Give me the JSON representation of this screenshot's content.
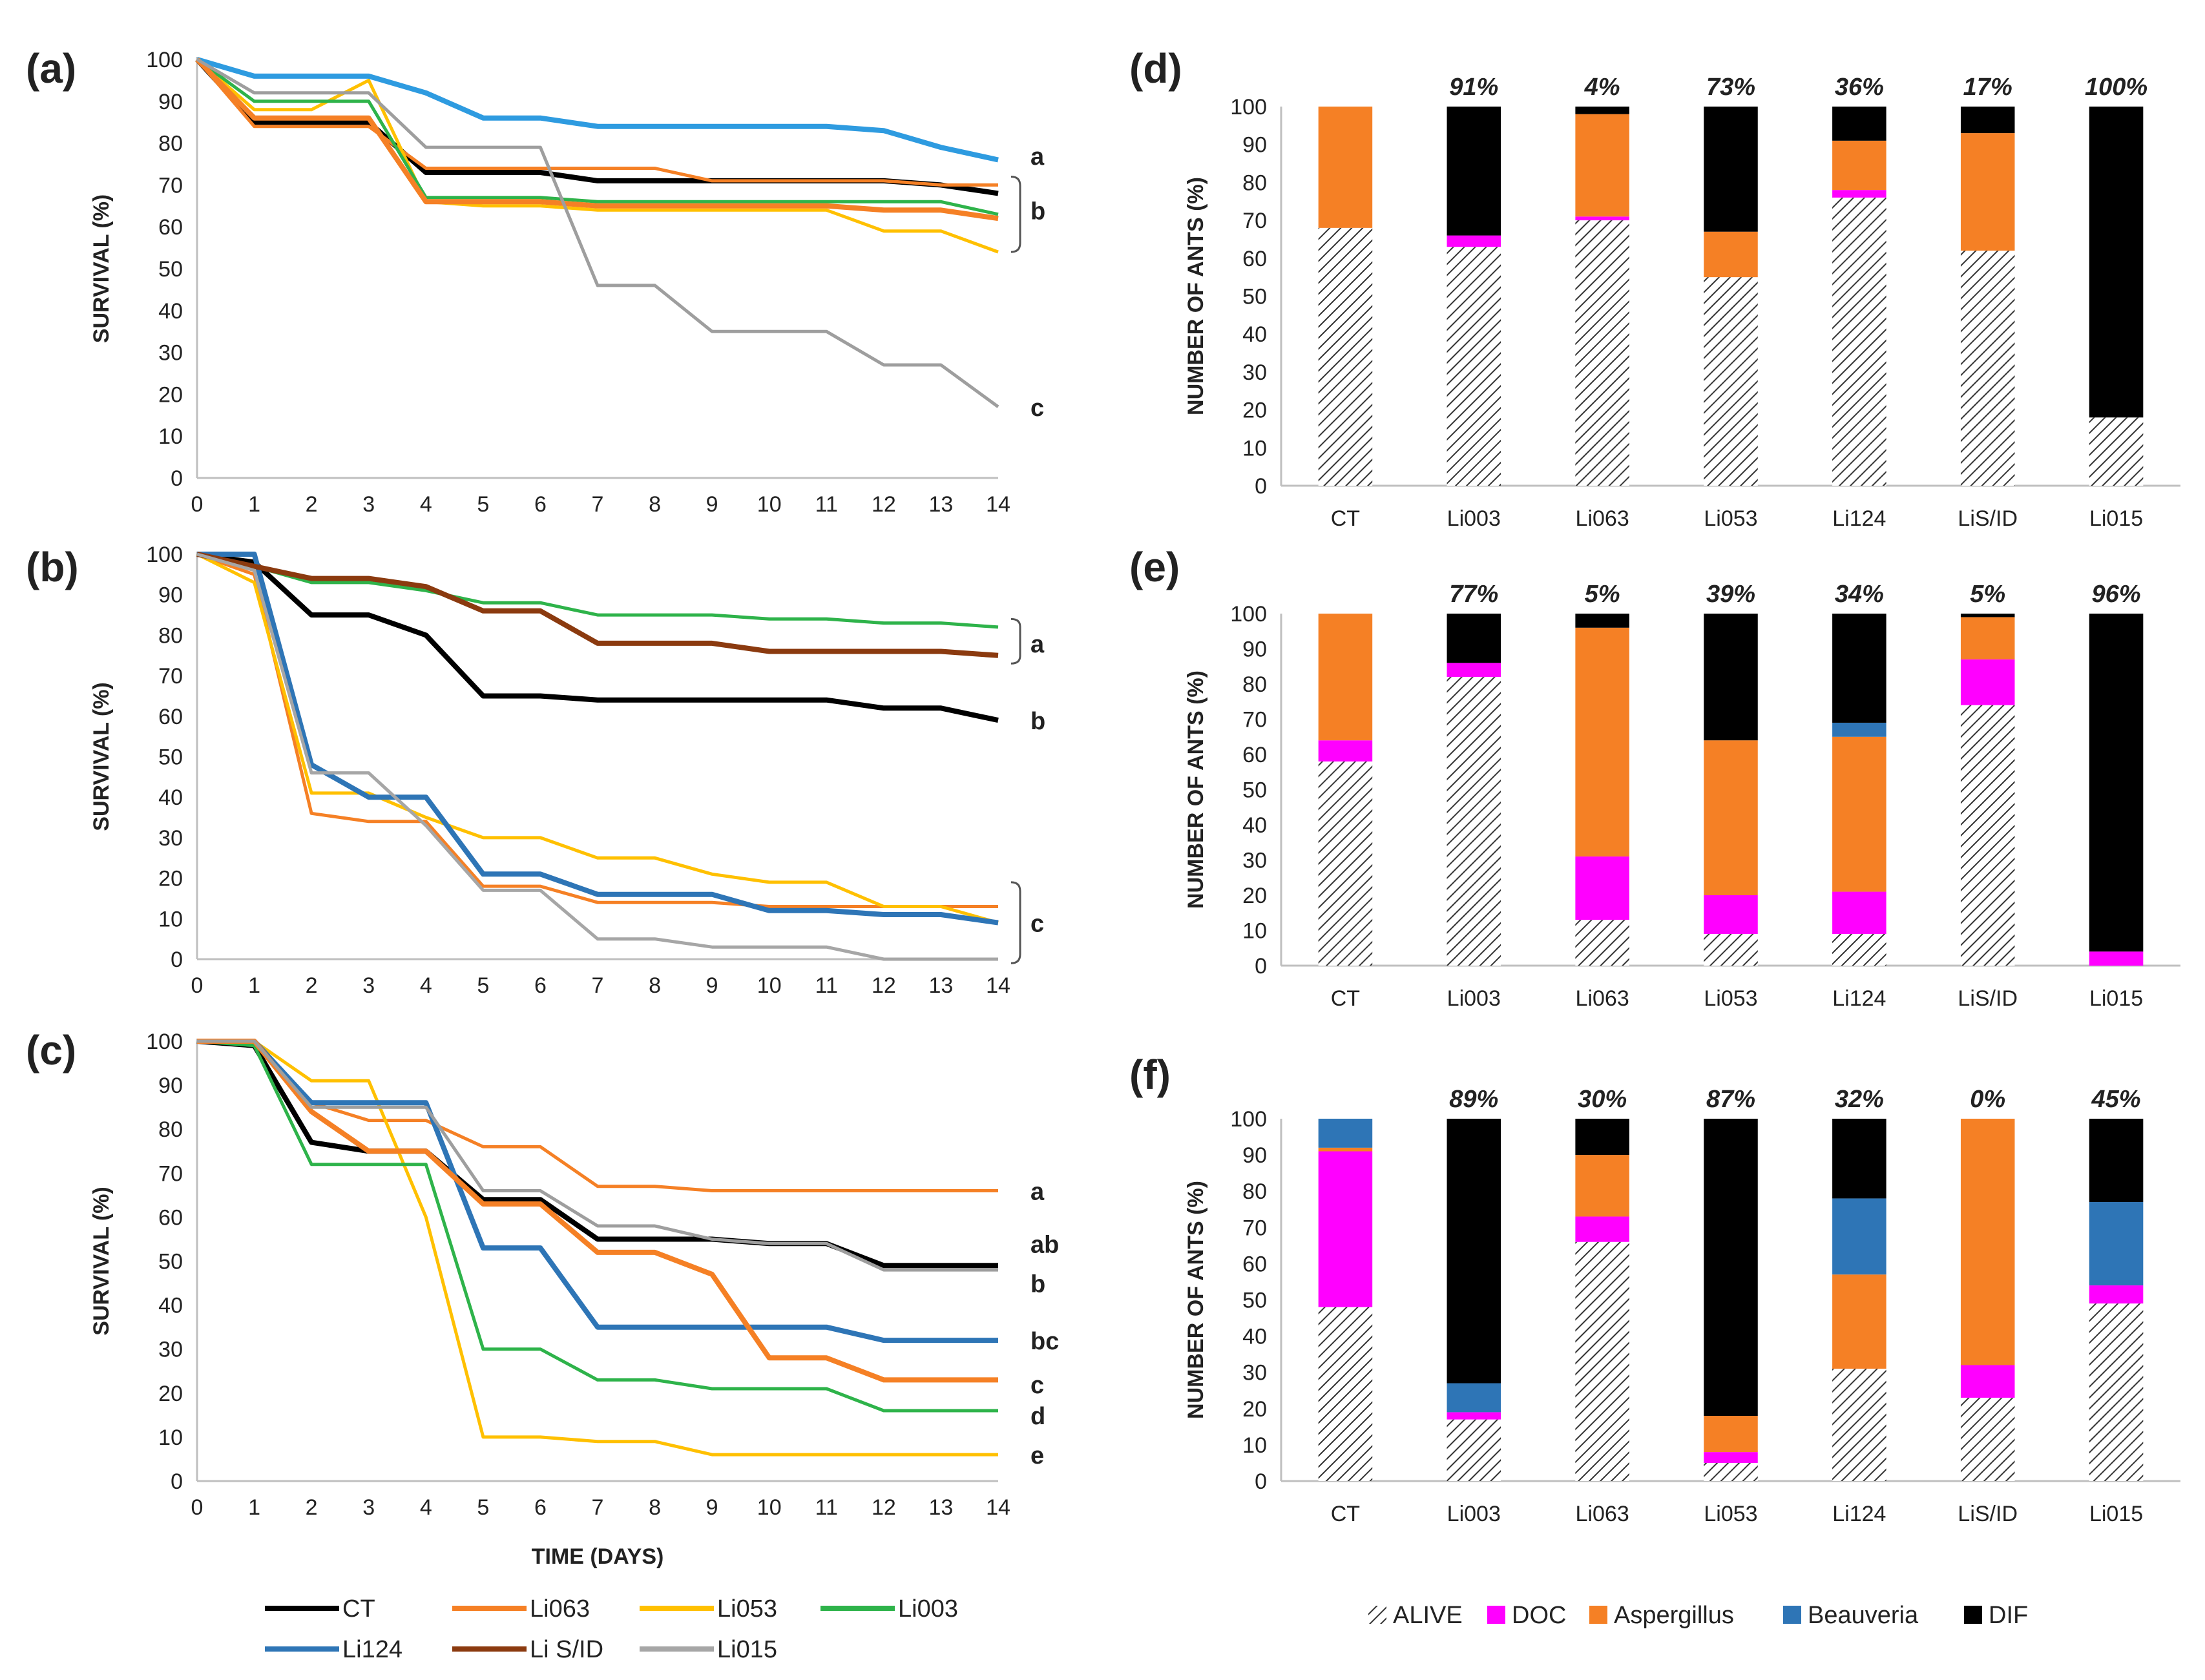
{
  "chart_data": [
    {
      "type": "line",
      "panel": "(a)",
      "ylabel": "SURVIVAL (%)",
      "xlabel": "",
      "x": [
        0,
        1,
        2,
        3,
        4,
        5,
        6,
        7,
        8,
        9,
        10,
        11,
        12,
        13,
        14
      ],
      "ylim": [
        0,
        100
      ],
      "series": [
        {
          "name": "CT",
          "color": "#000000",
          "values": [
            100,
            85,
            85,
            85,
            73,
            73,
            73,
            71,
            71,
            71,
            71,
            71,
            71,
            70,
            68
          ]
        },
        {
          "name": "Li063",
          "color": "#F58025",
          "values": [
            100,
            84,
            84,
            84,
            74,
            74,
            74,
            74,
            74,
            71,
            71,
            71,
            71,
            70,
            70
          ]
        },
        {
          "name": "Li053",
          "color": "#FFC000",
          "values": [
            100,
            88,
            88,
            95,
            66,
            65,
            65,
            64,
            64,
            64,
            64,
            64,
            59,
            59,
            54
          ]
        },
        {
          "name": "Li003",
          "color": "#2EB34A",
          "values": [
            100,
            90,
            90,
            90,
            67,
            67,
            67,
            66,
            66,
            66,
            66,
            66,
            66,
            66,
            63
          ]
        },
        {
          "name": "Li124",
          "color": "#2E9BE0",
          "values": [
            100,
            96,
            96,
            96,
            92,
            86,
            86,
            84,
            84,
            84,
            84,
            84,
            83,
            79,
            76
          ]
        },
        {
          "name": "Li S/ID",
          "color": "#F58025",
          "values": [
            100,
            86,
            86,
            86,
            66,
            66,
            66,
            65,
            65,
            65,
            65,
            65,
            64,
            64,
            62
          ]
        },
        {
          "name": "Li015",
          "color": "#9E9E9E",
          "values": [
            100,
            92,
            92,
            92,
            79,
            79,
            79,
            46,
            46,
            35,
            35,
            35,
            27,
            27,
            17
          ]
        }
      ],
      "annotations": [
        {
          "text": "a",
          "y": 77
        },
        {
          "text": "b",
          "y": 64
        },
        {
          "text": "c",
          "y": 17
        }
      ]
    },
    {
      "type": "line",
      "panel": "(b)",
      "ylabel": "SURVIVAL (%)",
      "xlabel": "",
      "x": [
        0,
        1,
        2,
        3,
        4,
        5,
        6,
        7,
        8,
        9,
        10,
        11,
        12,
        13,
        14
      ],
      "ylim": [
        0,
        100
      ],
      "series": [
        {
          "name": "CT",
          "color": "#000000",
          "values": [
            100,
            98,
            85,
            85,
            80,
            65,
            65,
            64,
            64,
            64,
            64,
            64,
            62,
            62,
            59
          ]
        },
        {
          "name": "Li063",
          "color": "#F58025",
          "values": [
            100,
            95,
            36,
            34,
            34,
            18,
            18,
            14,
            14,
            14,
            13,
            13,
            13,
            13,
            13
          ]
        },
        {
          "name": "Li053",
          "color": "#FFC000",
          "values": [
            100,
            93,
            41,
            41,
            35,
            30,
            30,
            25,
            25,
            21,
            19,
            19,
            13,
            13,
            9
          ]
        },
        {
          "name": "Li003",
          "color": "#2EB34A",
          "values": [
            100,
            97,
            93,
            93,
            91,
            88,
            88,
            85,
            85,
            85,
            84,
            84,
            83,
            83,
            82
          ]
        },
        {
          "name": "Li124",
          "color": "#2E75B6",
          "values": [
            100,
            100,
            48,
            40,
            40,
            21,
            21,
            16,
            16,
            16,
            12,
            12,
            11,
            11,
            9
          ]
        },
        {
          "name": "Li S/ID",
          "color": "#8B3A0F",
          "values": [
            100,
            97,
            94,
            94,
            92,
            86,
            86,
            78,
            78,
            78,
            76,
            76,
            76,
            76,
            75
          ]
        },
        {
          "name": "Li015",
          "color": "#A6A6A6",
          "values": [
            100,
            96,
            46,
            46,
            33,
            17,
            17,
            5,
            5,
            3,
            3,
            3,
            0,
            0,
            0
          ]
        }
      ],
      "annotations": [
        {
          "text": "a",
          "y": 78
        },
        {
          "text": "b",
          "y": 59
        },
        {
          "text": "c",
          "y": 9
        }
      ]
    },
    {
      "type": "line",
      "panel": "(c)",
      "ylabel": "SURVIVAL (%)",
      "xlabel": "TIME (DAYS)",
      "x": [
        0,
        1,
        2,
        3,
        4,
        5,
        6,
        7,
        8,
        9,
        10,
        11,
        12,
        13,
        14
      ],
      "ylim": [
        0,
        100
      ],
      "series": [
        {
          "name": "CT",
          "color": "#000000",
          "values": [
            100,
            99,
            77,
            75,
            75,
            64,
            64,
            55,
            55,
            55,
            54,
            54,
            49,
            49,
            49
          ]
        },
        {
          "name": "Li063",
          "color": "#F58025",
          "values": [
            100,
            100,
            86,
            82,
            82,
            76,
            76,
            67,
            67,
            66,
            66,
            66,
            66,
            66,
            66
          ]
        },
        {
          "name": "Li053",
          "color": "#FFC000",
          "values": [
            100,
            100,
            91,
            91,
            60,
            10,
            10,
            9,
            9,
            6,
            6,
            6,
            6,
            6,
            6
          ]
        },
        {
          "name": "Li003",
          "color": "#2EB34A",
          "values": [
            100,
            99,
            72,
            72,
            72,
            30,
            30,
            23,
            23,
            21,
            21,
            21,
            16,
            16,
            16
          ]
        },
        {
          "name": "Li124",
          "color": "#2E75B6",
          "values": [
            100,
            100,
            86,
            86,
            86,
            53,
            53,
            35,
            35,
            35,
            35,
            35,
            32,
            32,
            32
          ]
        },
        {
          "name": "Li S/ID",
          "color": "#F58025",
          "values": [
            100,
            100,
            84,
            75,
            75,
            63,
            63,
            52,
            52,
            47,
            28,
            28,
            23,
            23,
            23
          ]
        },
        {
          "name": "Li015",
          "color": "#9E9E9E",
          "values": [
            100,
            100,
            85,
            85,
            85,
            66,
            66,
            58,
            58,
            55,
            54,
            54,
            48,
            48,
            48
          ]
        }
      ],
      "annotations": [
        {
          "text": "a",
          "y": 66
        },
        {
          "text": "ab",
          "y": 54
        },
        {
          "text": "b",
          "y": 45
        },
        {
          "text": "bc",
          "y": 32
        },
        {
          "text": "c",
          "y": 22
        },
        {
          "text": "d",
          "y": 15
        },
        {
          "text": "e",
          "y": 6
        }
      ]
    },
    {
      "type": "bar",
      "stacked": true,
      "panel": "(d)",
      "ylabel": "NUMBER OF ANTS (%)",
      "categories": [
        "CT",
        "Li003",
        "Li063",
        "Li053",
        "Li124",
        "LiS/ID",
        "Li015"
      ],
      "ylim": [
        0,
        100
      ],
      "percent_labels": [
        "",
        "91%",
        "4%",
        "73%",
        "36%",
        "17%",
        "100%"
      ],
      "series": [
        {
          "name": "ALIVE",
          "color": "hatch",
          "values": [
            68,
            63,
            70,
            55,
            76,
            62,
            18
          ]
        },
        {
          "name": "DOC",
          "color": "#FF00FF",
          "values": [
            0,
            3,
            1,
            0,
            2,
            0,
            0
          ]
        },
        {
          "name": "Aspergillus",
          "color": "#F58025",
          "values": [
            32,
            0,
            27,
            12,
            13,
            31,
            0
          ]
        },
        {
          "name": "Beauveria",
          "color": "#2E75B6",
          "values": [
            0,
            0,
            0,
            0,
            0,
            0,
            0
          ]
        },
        {
          "name": "DIF",
          "color": "#000000",
          "values": [
            0,
            34,
            2,
            33,
            9,
            7,
            82
          ]
        }
      ]
    },
    {
      "type": "bar",
      "stacked": true,
      "panel": "(e)",
      "ylabel": "NUMBER OF ANTS (%)",
      "categories": [
        "CT",
        "Li003",
        "Li063",
        "Li053",
        "Li124",
        "LiS/ID",
        "Li015"
      ],
      "ylim": [
        0,
        100
      ],
      "percent_labels": [
        "",
        "77%",
        "5%",
        "39%",
        "34%",
        "5%",
        "96%"
      ],
      "series": [
        {
          "name": "ALIVE",
          "color": "hatch",
          "values": [
            58,
            82,
            13,
            9,
            9,
            74,
            0
          ]
        },
        {
          "name": "DOC",
          "color": "#FF00FF",
          "values": [
            6,
            4,
            18,
            11,
            12,
            13,
            4
          ]
        },
        {
          "name": "Aspergillus",
          "color": "#F58025",
          "values": [
            36,
            0,
            65,
            44,
            44,
            12,
            0
          ]
        },
        {
          "name": "Beauveria",
          "color": "#2E75B6",
          "values": [
            0,
            0,
            0,
            0,
            4,
            0,
            0
          ]
        },
        {
          "name": "DIF",
          "color": "#000000",
          "values": [
            0,
            14,
            4,
            36,
            31,
            1,
            96
          ]
        }
      ]
    },
    {
      "type": "bar",
      "stacked": true,
      "panel": "(f)",
      "ylabel": "NUMBER OF ANTS (%)",
      "categories": [
        "CT",
        "Li003",
        "Li063",
        "Li053",
        "Li124",
        "LiS/ID",
        "Li015"
      ],
      "ylim": [
        0,
        100
      ],
      "percent_labels": [
        "",
        "89%",
        "30%",
        "87%",
        "32%",
        "0%",
        "45%"
      ],
      "series": [
        {
          "name": "ALIVE",
          "color": "hatch",
          "values": [
            48,
            17,
            66,
            5,
            31,
            23,
            49
          ]
        },
        {
          "name": "DOC",
          "color": "#FF00FF",
          "values": [
            43,
            2,
            7,
            3,
            0,
            9,
            5
          ]
        },
        {
          "name": "Aspergillus",
          "color": "#F58025",
          "values": [
            1,
            0,
            17,
            10,
            26,
            68,
            0
          ]
        },
        {
          "name": "Beauveria",
          "color": "#2E75B6",
          "values": [
            8,
            8,
            0,
            0,
            21,
            0,
            23
          ]
        },
        {
          "name": "DIF",
          "color": "#000000",
          "values": [
            0,
            73,
            10,
            82,
            22,
            0,
            23
          ]
        }
      ]
    }
  ],
  "line_legend": [
    {
      "label": "CT",
      "color": "#000000"
    },
    {
      "label": "Li063",
      "color": "#F58025"
    },
    {
      "label": "Li053",
      "color": "#FFC000"
    },
    {
      "label": "Li003",
      "color": "#2EB34A"
    },
    {
      "label": "Li124",
      "color": "#2E75B6"
    },
    {
      "label": "Li S/ID",
      "color": "#8B3A0F"
    },
    {
      "label": "Li015",
      "color": "#A6A6A6"
    }
  ],
  "bar_legend": [
    {
      "label": "ALIVE",
      "color": "hatch"
    },
    {
      "label": "DOC",
      "color": "#FF00FF"
    },
    {
      "label": "Aspergillus",
      "color": "#F58025"
    },
    {
      "label": "Beauveria",
      "color": "#2E75B6"
    },
    {
      "label": "DIF",
      "color": "#000000"
    }
  ]
}
